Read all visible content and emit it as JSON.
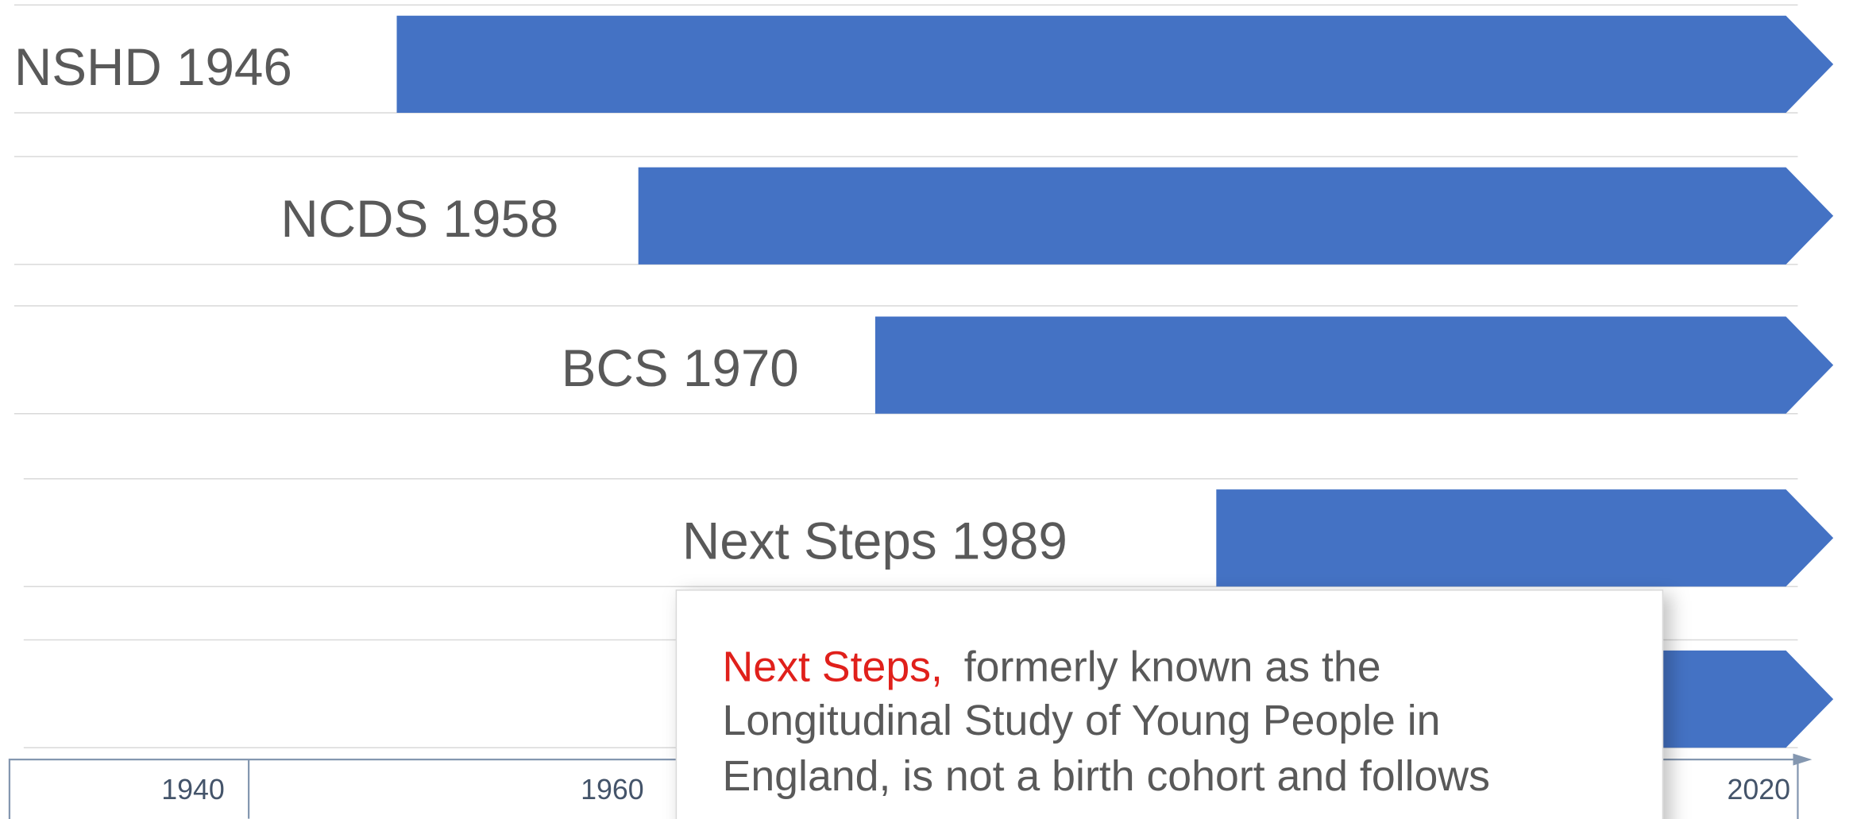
{
  "rows": [
    {
      "label": "NSHD 1946"
    },
    {
      "label": "NCDS 1958"
    },
    {
      "label": "BCS 1970"
    },
    {
      "label": "Next Steps 1989"
    },
    {
      "label": null
    }
  ],
  "axis": {
    "labels": [
      "1940",
      "1960",
      "2020"
    ]
  },
  "tooltip": {
    "title": "Next Steps,",
    "lines": [
      "formerly known as the",
      "Longitudinal Study of Young People in",
      "England, is not a birth cohort and follows"
    ]
  }
}
